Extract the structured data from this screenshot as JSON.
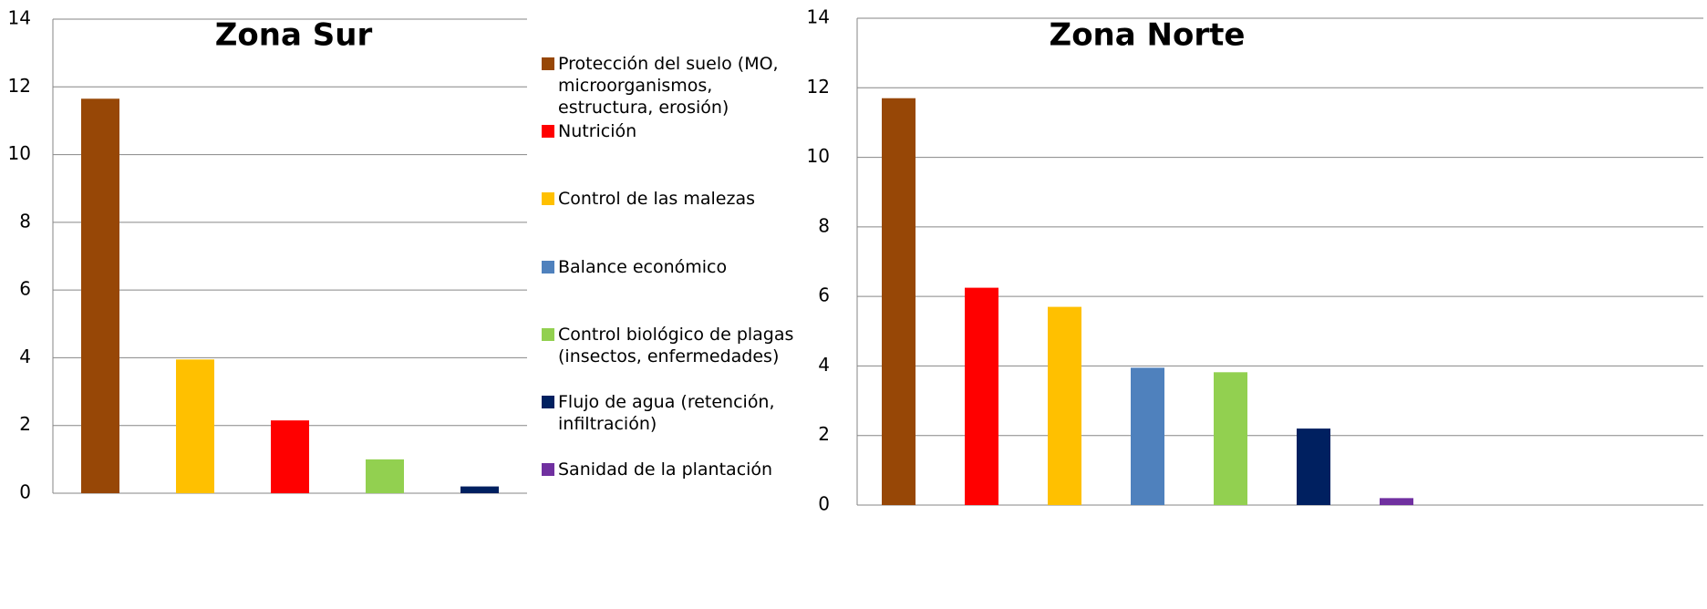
{
  "chart_data": [
    {
      "type": "bar",
      "title": "Zona Sur",
      "categories": [
        null,
        null,
        null,
        null,
        null
      ],
      "values": [
        11.65,
        3.95,
        2.15,
        1.0,
        0.2
      ],
      "colors": [
        "#974706",
        "#ffc000",
        "#ff0000",
        "#92d050",
        "#002060"
      ],
      "ylim": [
        0,
        14
      ],
      "yticks": [
        0,
        2,
        4,
        6,
        8,
        10,
        12,
        14
      ],
      "grid": true
    },
    {
      "type": "bar",
      "title": "Zona Norte",
      "categories": [
        null,
        null,
        null,
        null,
        null,
        null,
        null
      ],
      "values": [
        11.7,
        6.25,
        5.7,
        3.95,
        3.82,
        2.2,
        0.2
      ],
      "colors": [
        "#974706",
        "#ff0000",
        "#ffc000",
        "#4f81bd",
        "#92d050",
        "#002060",
        "#7030a0"
      ],
      "ylim": [
        0,
        14
      ],
      "yticks": [
        0,
        2,
        4,
        6,
        8,
        10,
        12,
        14
      ],
      "grid": true
    }
  ],
  "legend": {
    "items": [
      {
        "label": "Protección del suelo (MO, microorganismos, estructura, erosión)",
        "color": "#974706"
      },
      {
        "label": "Nutrición",
        "color": "#ff0000"
      },
      {
        "label": "Control de las malezas",
        "color": "#ffc000"
      },
      {
        "label": "Balance económico",
        "color": "#4f81bd"
      },
      {
        "label": "Control biológico de plagas (insectos, enfermedades)",
        "color": "#92d050"
      },
      {
        "label": "Flujo de agua (retención, infiltración)",
        "color": "#002060"
      },
      {
        "label": "Sanidad de la plantación",
        "color": "#7030a0"
      }
    ]
  }
}
